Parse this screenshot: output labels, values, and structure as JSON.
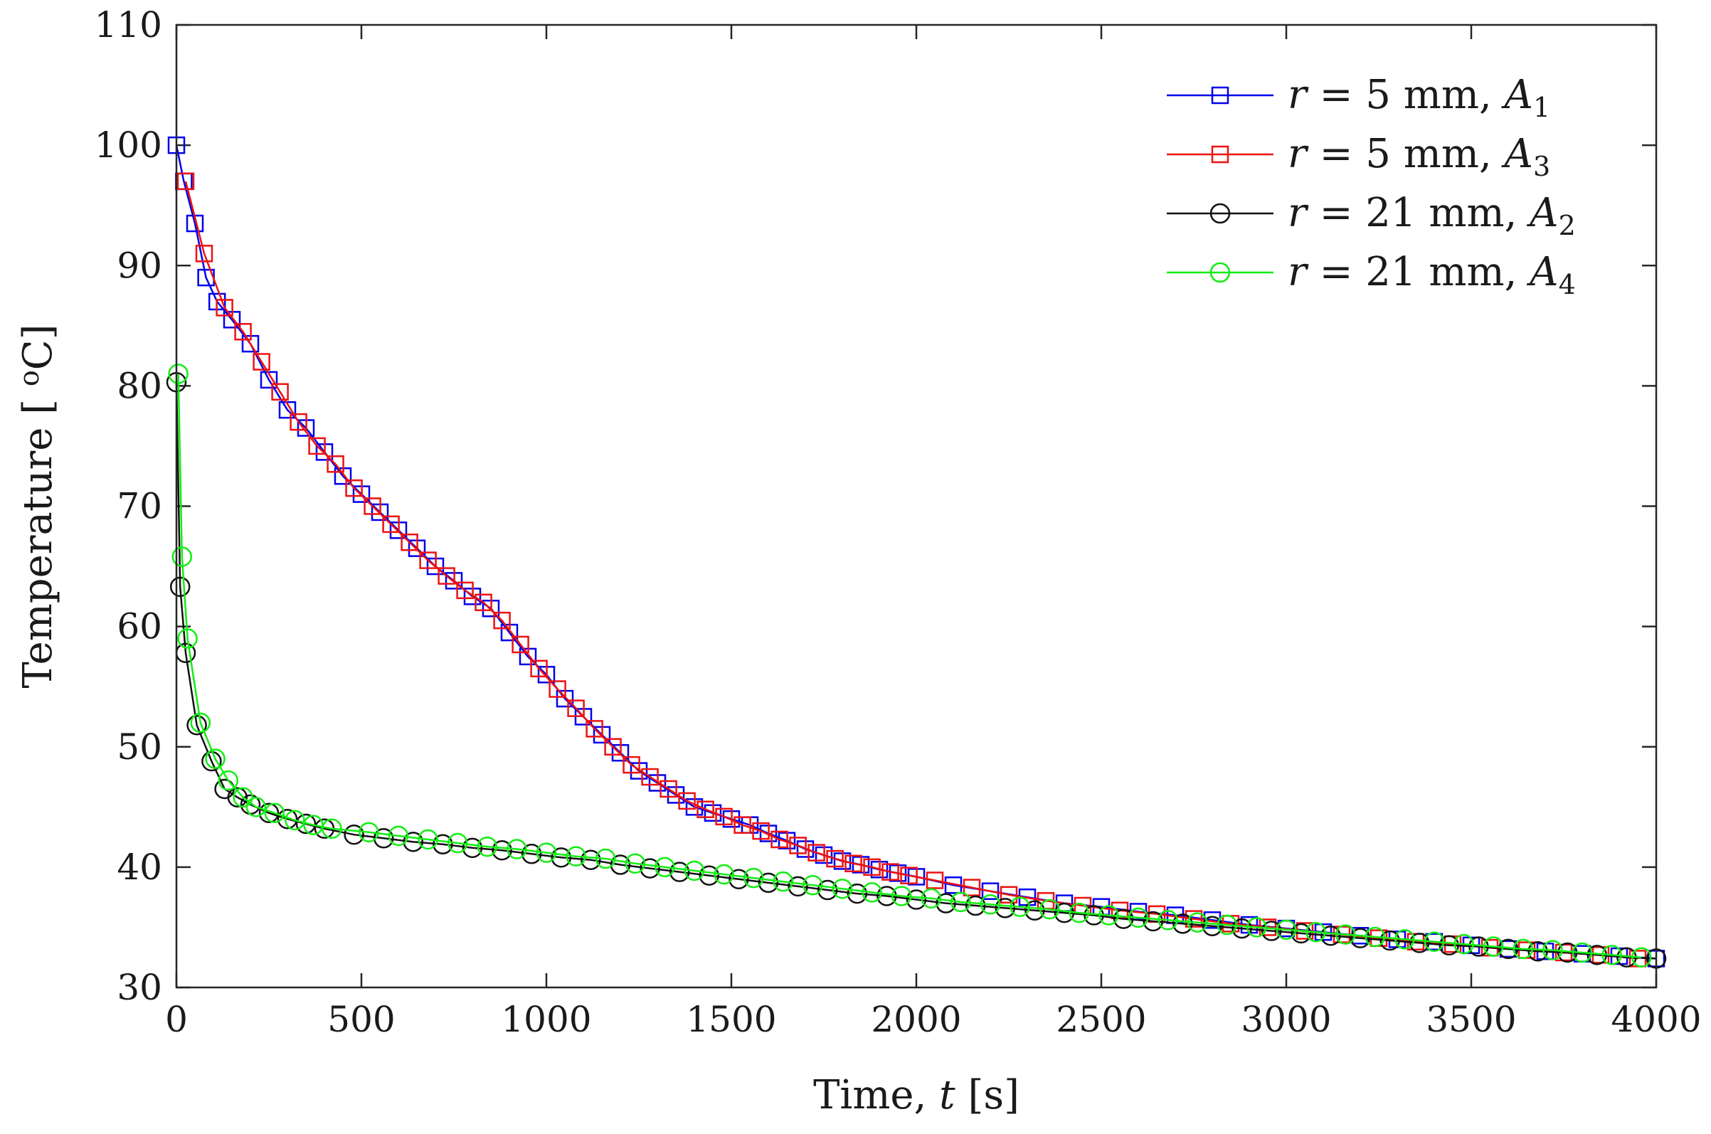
{
  "chart_data": {
    "type": "line",
    "title": "",
    "xlabel": {
      "prefix": "Time, ",
      "var": "t",
      "suffix": " [s]"
    },
    "ylabel": {
      "prefix": "Temperature [ ",
      "sup": "o",
      "suffix": "C]"
    },
    "xlim": [
      0,
      4000
    ],
    "ylim": [
      30,
      110
    ],
    "xticks": [
      0,
      500,
      1000,
      1500,
      2000,
      2500,
      3000,
      3500,
      4000
    ],
    "yticks": [
      30,
      40,
      50,
      60,
      70,
      80,
      90,
      100,
      110
    ],
    "grid": false,
    "legend_position": "top-right",
    "series": [
      {
        "name": "r = 5 mm, A1",
        "legend": {
          "var": "r",
          "eq": " = 5 mm, ",
          "sub_base": "A",
          "sub": "1"
        },
        "color": "#0000ee",
        "marker": "square",
        "x": [
          0,
          20,
          50,
          80,
          110,
          150,
          200,
          250,
          300,
          350,
          400,
          450,
          500,
          550,
          600,
          650,
          700,
          750,
          800,
          850,
          900,
          950,
          1000,
          1050,
          1100,
          1150,
          1200,
          1250,
          1300,
          1350,
          1400,
          1450,
          1500,
          1550,
          1600,
          1650,
          1700,
          1750,
          1800,
          1850,
          1900,
          1950,
          2000,
          2100,
          2200,
          2300,
          2400,
          2500,
          2600,
          2700,
          2800,
          2900,
          3000,
          3100,
          3200,
          3300,
          3400,
          3500,
          3600,
          3700,
          3800,
          3900,
          4000
        ],
        "y": [
          100,
          97,
          93.5,
          89,
          87,
          85.5,
          83.5,
          80.5,
          78,
          76.5,
          74.5,
          72.5,
          71,
          69.5,
          68,
          66.5,
          65,
          63.8,
          62.5,
          61.5,
          59.5,
          57.5,
          56,
          54,
          52.5,
          51,
          49.5,
          48,
          47,
          46,
          45,
          44.5,
          44,
          43.5,
          42.8,
          42.2,
          41.5,
          41,
          40.5,
          40.2,
          39.8,
          39.5,
          39.2,
          38.5,
          38,
          37.5,
          37,
          36.7,
          36.3,
          36,
          35.6,
          35.2,
          34.9,
          34.6,
          34.3,
          34,
          33.8,
          33.5,
          33.2,
          33,
          32.8,
          32.6,
          32.4
        ]
      },
      {
        "name": "r = 5 mm, A3",
        "legend": {
          "var": "r",
          "eq": " = 5 mm, ",
          "sub_base": "A",
          "sub": "3"
        },
        "color": "#ee1111",
        "marker": "square",
        "x": [
          25,
          75,
          130,
          180,
          230,
          280,
          330,
          380,
          430,
          480,
          530,
          580,
          630,
          680,
          730,
          780,
          830,
          880,
          930,
          980,
          1030,
          1080,
          1130,
          1180,
          1230,
          1280,
          1330,
          1380,
          1430,
          1480,
          1530,
          1580,
          1630,
          1680,
          1730,
          1780,
          1830,
          1880,
          1930,
          1980,
          2050,
          2150,
          2250,
          2350,
          2450,
          2550,
          2650,
          2750,
          2850,
          2950,
          3050,
          3150,
          3250,
          3350,
          3450,
          3550,
          3650,
          3750,
          3850,
          3950
        ],
        "y": [
          97,
          91,
          86.5,
          84.5,
          82,
          79.5,
          77,
          75,
          73.5,
          71.5,
          70,
          68.5,
          67,
          65.5,
          64.2,
          63,
          62,
          60.5,
          58.5,
          56.5,
          54.8,
          53.2,
          51.5,
          50,
          48.5,
          47.5,
          46.5,
          45.5,
          44.8,
          44.2,
          43.5,
          43,
          42.3,
          41.8,
          41.2,
          40.7,
          40.3,
          40,
          39.6,
          39.3,
          38.9,
          38.3,
          37.7,
          37.2,
          36.8,
          36.4,
          36.1,
          35.7,
          35.3,
          35,
          34.7,
          34.4,
          34.1,
          33.8,
          33.6,
          33.3,
          33.1,
          32.9,
          32.7,
          32.4
        ]
      },
      {
        "name": "r = 21 mm, A2",
        "legend": {
          "var": "r",
          "eq": " = 21 mm, ",
          "sub_base": "A",
          "sub": "2"
        },
        "color": "#111111",
        "marker": "circle",
        "x": [
          0,
          10,
          25,
          55,
          95,
          130,
          165,
          200,
          250,
          300,
          350,
          400,
          480,
          560,
          640,
          720,
          800,
          880,
          960,
          1040,
          1120,
          1200,
          1280,
          1360,
          1440,
          1520,
          1600,
          1680,
          1760,
          1840,
          1920,
          2000,
          2080,
          2160,
          2240,
          2320,
          2400,
          2480,
          2560,
          2640,
          2720,
          2800,
          2880,
          2960,
          3040,
          3120,
          3200,
          3280,
          3360,
          3440,
          3520,
          3600,
          3680,
          3760,
          3840,
          3920,
          4000
        ],
        "y": [
          80.3,
          63.3,
          57.8,
          51.8,
          48.8,
          46.5,
          45.8,
          45.2,
          44.5,
          44,
          43.6,
          43.2,
          42.7,
          42.4,
          42.1,
          41.9,
          41.6,
          41.4,
          41.1,
          40.8,
          40.6,
          40.2,
          39.9,
          39.6,
          39.3,
          39,
          38.7,
          38.4,
          38.1,
          37.8,
          37.6,
          37.3,
          37,
          36.8,
          36.6,
          36.4,
          36.2,
          36,
          35.7,
          35.5,
          35.3,
          35.1,
          34.9,
          34.7,
          34.5,
          34.3,
          34.1,
          33.9,
          33.7,
          33.5,
          33.4,
          33.2,
          33,
          32.9,
          32.7,
          32.5,
          32.4
        ]
      },
      {
        "name": "r = 21 mm, A4",
        "legend": {
          "var": "r",
          "eq": " = 21 mm, ",
          "sub_base": "A",
          "sub": "4"
        },
        "color": "#11ee11",
        "marker": "circle",
        "x": [
          5,
          15,
          30,
          65,
          105,
          140,
          180,
          215,
          265,
          320,
          370,
          420,
          520,
          600,
          680,
          760,
          840,
          920,
          1000,
          1080,
          1160,
          1240,
          1320,
          1400,
          1480,
          1560,
          1640,
          1720,
          1800,
          1880,
          1960,
          2040,
          2120,
          2200,
          2280,
          2360,
          2440,
          2520,
          2600,
          2680,
          2760,
          2840,
          2920,
          3000,
          3080,
          3160,
          3240,
          3320,
          3400,
          3480,
          3560,
          3640,
          3720,
          3800,
          3880,
          3960
        ],
        "y": [
          81,
          65.8,
          59,
          52,
          49,
          47.2,
          45.8,
          45,
          44.5,
          43.9,
          43.5,
          43.2,
          42.9,
          42.6,
          42.3,
          42,
          41.7,
          41.5,
          41.2,
          40.9,
          40.7,
          40.3,
          40,
          39.7,
          39.4,
          39.1,
          38.8,
          38.5,
          38.2,
          37.9,
          37.6,
          37.4,
          37.1,
          36.9,
          36.7,
          36.5,
          36.2,
          36,
          35.8,
          35.6,
          35.4,
          35.2,
          35,
          34.8,
          34.6,
          34.4,
          34.2,
          34,
          33.8,
          33.6,
          33.4,
          33.2,
          33.1,
          32.9,
          32.7,
          32.5
        ]
      }
    ]
  }
}
